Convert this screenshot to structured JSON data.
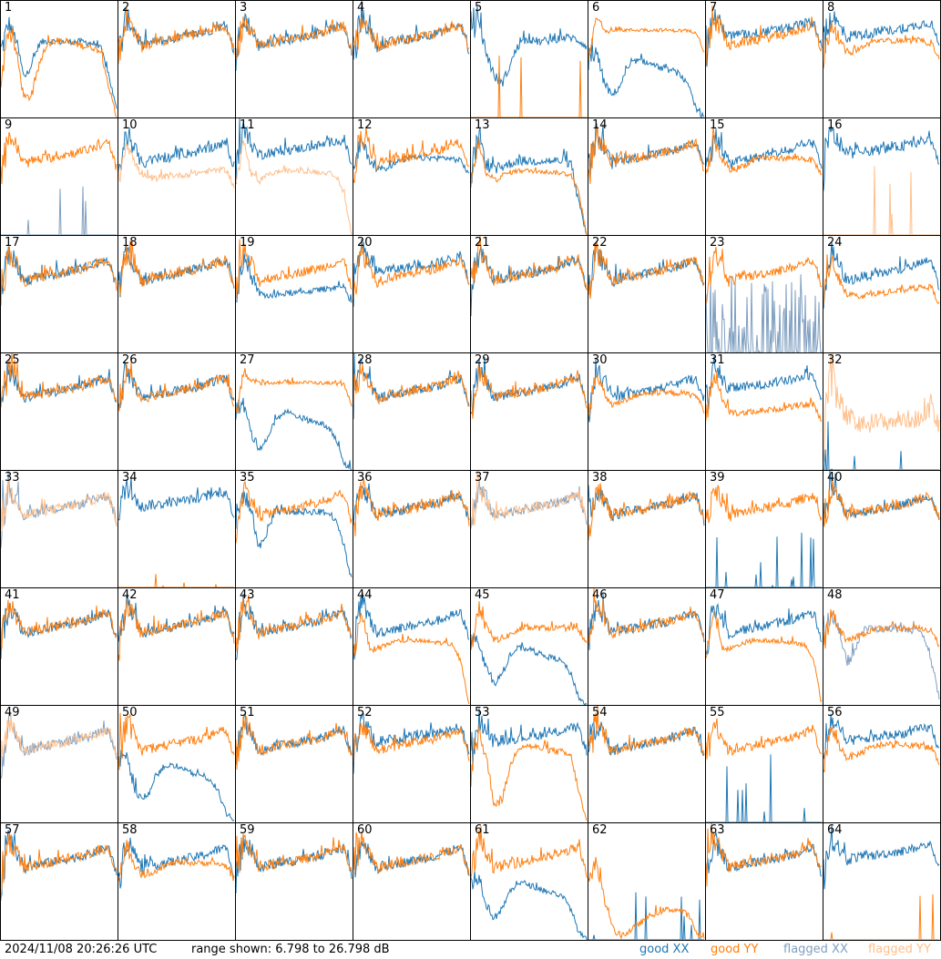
{
  "chart_data": {
    "type": "line",
    "title": "",
    "xlabel": "",
    "ylabel": "dB",
    "ylim": [
      6.798,
      26.798
    ],
    "timestamp": "2024/11/08 20:26:26 UTC",
    "range_text": "range shown: 6.798 to 26.798 dB",
    "legend": [
      {
        "label": "good XX",
        "color": "#1f77b4"
      },
      {
        "label": "good YY",
        "color": "#ff7f0e"
      },
      {
        "label": "flagged XX",
        "color": "#7f9fc0"
      },
      {
        "label": "flagged YY",
        "color": "#ffbf8a"
      }
    ],
    "legend_placement": "bottom-right",
    "profiles": {
      "typical": {
        "noise": 0.8,
        "values": [
          17,
          24,
          22,
          19,
          19.5,
          19.8,
          20,
          20.2,
          20.5,
          20.8,
          21,
          21.3,
          21.8,
          22.3,
          22.5,
          18
        ]
      },
      "high": {
        "noise": 0.8,
        "values": [
          18,
          24.5,
          22.5,
          20.5,
          21,
          21,
          21.2,
          21.4,
          21.6,
          21.8,
          22,
          22.2,
          22.6,
          23,
          23,
          19
        ]
      },
      "dip_mid": {
        "noise": 0.6,
        "values": [
          18,
          23,
          20,
          13.5,
          16,
          19.5,
          20,
          19.8,
          19.8,
          19.8,
          19.8,
          19.7,
          19.5,
          18.5,
          14,
          8
        ]
      },
      "dip_deep": {
        "noise": 0.6,
        "values": [
          14,
          22,
          18,
          10,
          10.5,
          16,
          19.5,
          20,
          19.8,
          19.5,
          19.3,
          19,
          18.8,
          18,
          12,
          6.8
        ]
      },
      "dip5": {
        "noise": 0.7,
        "values": [
          24,
          22,
          18,
          14,
          12.5,
          15.5,
          19,
          20,
          20,
          19.8,
          20,
          20.2,
          20.5,
          20.5,
          20,
          19
        ]
      },
      "deep_rolloff": {
        "noise": 0.5,
        "values": [
          17,
          18,
          13,
          10.5,
          12,
          15,
          16.5,
          16.5,
          16,
          15.5,
          15,
          14.8,
          14,
          12,
          8,
          6.8
        ]
      },
      "high_flat": {
        "noise": 0.3,
        "values": [
          16,
          24,
          22,
          21.5,
          21.8,
          21.8,
          21.8,
          21.8,
          21.8,
          21.8,
          21.8,
          21.7,
          21.7,
          21.6,
          21.5,
          18
        ]
      },
      "mild_dip": {
        "noise": 0.5,
        "values": [
          17,
          23,
          20,
          18,
          18.2,
          18.8,
          19.5,
          20,
          20,
          20,
          20,
          20,
          20,
          19.8,
          19.5,
          17
        ]
      },
      "low_shelf": {
        "noise": 0.5,
        "values": [
          16,
          23,
          19.5,
          17,
          16.5,
          16.5,
          16.8,
          17,
          17,
          17.2,
          17.4,
          17.6,
          17.8,
          18,
          18,
          15
        ]
      },
      "shelf_rolloff": {
        "noise": 0.4,
        "values": [
          15,
          23,
          17,
          16,
          17,
          17.5,
          17.8,
          17.8,
          17.8,
          17.7,
          17.6,
          17.5,
          17.4,
          17,
          14,
          6.8
        ]
      },
      "collapse_end": {
        "noise": 0.8,
        "values": [
          16,
          24,
          19,
          18,
          18.5,
          19,
          19.5,
          19.5,
          19.5,
          19.5,
          19.5,
          19.5,
          19.5,
          19,
          12,
          6.8
        ]
      },
      "low_bump": {
        "noise": 0.5,
        "values": [
          16,
          20,
          14,
          9,
          7.5,
          8,
          9,
          10,
          11,
          11.5,
          12,
          12,
          11.8,
          11,
          8,
          6.8
        ]
      },
      "noisy_mid": {
        "noise": 1.6,
        "values": [
          14,
          24,
          18,
          16,
          15,
          14.5,
          14.8,
          15,
          15,
          15.2,
          15.5,
          15.5,
          15.5,
          15.8,
          18,
          14
        ]
      },
      "floor_spikes": {
        "noise": 0,
        "spikes": true,
        "values": [
          6.8,
          6.8,
          6.8,
          6.8,
          6.8,
          6.8,
          6.8,
          6.8,
          6.8,
          6.8,
          6.8,
          6.8,
          6.8,
          6.8,
          6.8,
          6.8
        ]
      },
      "spiky_low": {
        "noise": 0,
        "spikes": true,
        "dense": true,
        "values": [
          6.8,
          6.8,
          6.8,
          6.8,
          6.8,
          6.8,
          6.8,
          6.8,
          6.8,
          6.8,
          6.8,
          6.8,
          6.8,
          6.8,
          6.8,
          6.8
        ]
      }
    },
    "panels": [
      {
        "id": "1",
        "xx": "dip_mid",
        "yy": "dip_deep"
      },
      {
        "id": "2",
        "xx": "typical",
        "yy": "typical"
      },
      {
        "id": "3",
        "xx": "typical",
        "yy": "typical"
      },
      {
        "id": "4",
        "xx": "typical",
        "yy": "typical"
      },
      {
        "id": "5",
        "xx": "dip5",
        "yy": "floor_spikes"
      },
      {
        "id": "6",
        "xx": "deep_rolloff",
        "yy": "high_flat"
      },
      {
        "id": "7",
        "xx": "high",
        "yy": "typical"
      },
      {
        "id": "8",
        "xx": "high",
        "yy": "mild_dip"
      },
      {
        "id": "9",
        "xx": "floor_spikes",
        "yy": "typical",
        "xx_flagged": true
      },
      {
        "id": "10",
        "xx": "typical",
        "yy": "low_shelf",
        "yy_flagged": true
      },
      {
        "id": "11",
        "xx": "high",
        "yy": "shelf_rolloff",
        "yy_flagged": true
      },
      {
        "id": "12",
        "xx": "mild_dip",
        "yy": "typical"
      },
      {
        "id": "13",
        "xx": "collapse_end",
        "yy": "shelf_rolloff"
      },
      {
        "id": "14",
        "xx": "typical",
        "yy": "typical"
      },
      {
        "id": "15",
        "xx": "typical",
        "yy": "mild_dip"
      },
      {
        "id": "16",
        "xx": "high",
        "yy": "floor_spikes",
        "yy_flagged": true
      },
      {
        "id": "17",
        "xx": "typical",
        "yy": "typical"
      },
      {
        "id": "18",
        "xx": "typical",
        "yy": "typical"
      },
      {
        "id": "19",
        "xx": "low_shelf",
        "yy": "typical"
      },
      {
        "id": "20",
        "xx": "high",
        "yy": "typical"
      },
      {
        "id": "21",
        "xx": "typical",
        "yy": "typical"
      },
      {
        "id": "22",
        "xx": "typical",
        "yy": "typical"
      },
      {
        "id": "23",
        "xx": "spiky_low",
        "yy": "typical",
        "xx_flagged": true
      },
      {
        "id": "24",
        "xx": "typical",
        "yy": "low_shelf"
      },
      {
        "id": "25",
        "xx": "typical",
        "yy": "typical"
      },
      {
        "id": "26",
        "xx": "typical",
        "yy": "typical"
      },
      {
        "id": "27",
        "xx": "deep_rolloff",
        "yy": "high_flat"
      },
      {
        "id": "28",
        "xx": "typical",
        "yy": "typical"
      },
      {
        "id": "29",
        "xx": "typical",
        "yy": "typical"
      },
      {
        "id": "30",
        "xx": "typical",
        "yy": "mild_dip"
      },
      {
        "id": "31",
        "xx": "high",
        "yy": "low_shelf"
      },
      {
        "id": "32",
        "xx": "floor_spikes",
        "yy": "noisy_mid",
        "yy_flagged": true
      },
      {
        "id": "33",
        "xx": "typical",
        "yy": "typical",
        "xx_flagged": true,
        "yy_flagged": true
      },
      {
        "id": "34",
        "xx": "high",
        "yy": "floor_spikes"
      },
      {
        "id": "35",
        "xx": "dip_mid",
        "yy": "typical"
      },
      {
        "id": "36",
        "xx": "typical",
        "yy": "typical"
      },
      {
        "id": "37",
        "xx": "typical",
        "yy": "typical",
        "xx_flagged": true,
        "yy_flagged": true
      },
      {
        "id": "38",
        "xx": "typical",
        "yy": "typical"
      },
      {
        "id": "39",
        "xx": "floor_spikes",
        "yy": "typical"
      },
      {
        "id": "40",
        "xx": "typical",
        "yy": "typical"
      },
      {
        "id": "41",
        "xx": "typical",
        "yy": "typical"
      },
      {
        "id": "42",
        "xx": "typical",
        "yy": "typical"
      },
      {
        "id": "43",
        "xx": "typical",
        "yy": "typical"
      },
      {
        "id": "44",
        "xx": "typical",
        "yy": "shelf_rolloff"
      },
      {
        "id": "45",
        "xx": "deep_rolloff",
        "yy": "mild_dip"
      },
      {
        "id": "46",
        "xx": "typical",
        "yy": "typical"
      },
      {
        "id": "47",
        "xx": "typical",
        "yy": "shelf_rolloff"
      },
      {
        "id": "48",
        "xx": "dip_mid",
        "yy": "mild_dip",
        "xx_flagged": true
      },
      {
        "id": "49",
        "xx": "typical",
        "yy": "typical",
        "xx_flagged": true,
        "yy_flagged": true
      },
      {
        "id": "50",
        "xx": "deep_rolloff",
        "yy": "typical"
      },
      {
        "id": "51",
        "xx": "typical",
        "yy": "typical"
      },
      {
        "id": "52",
        "xx": "high",
        "yy": "typical"
      },
      {
        "id": "53",
        "xx": "high",
        "yy": "dip_deep"
      },
      {
        "id": "54",
        "xx": "typical",
        "yy": "typical"
      },
      {
        "id": "55",
        "xx": "floor_spikes",
        "yy": "typical"
      },
      {
        "id": "56",
        "xx": "high",
        "yy": "mild_dip"
      },
      {
        "id": "57",
        "xx": "typical",
        "yy": "typical"
      },
      {
        "id": "58",
        "xx": "typical",
        "yy": "mild_dip"
      },
      {
        "id": "59",
        "xx": "typical",
        "yy": "typical"
      },
      {
        "id": "60",
        "xx": "typical",
        "yy": "typical"
      },
      {
        "id": "61",
        "xx": "deep_rolloff",
        "yy": "typical"
      },
      {
        "id": "62",
        "xx": "floor_spikes",
        "yy": "low_bump"
      },
      {
        "id": "63",
        "xx": "typical",
        "yy": "typical"
      },
      {
        "id": "64",
        "xx": "high",
        "yy": "floor_spikes"
      }
    ]
  }
}
